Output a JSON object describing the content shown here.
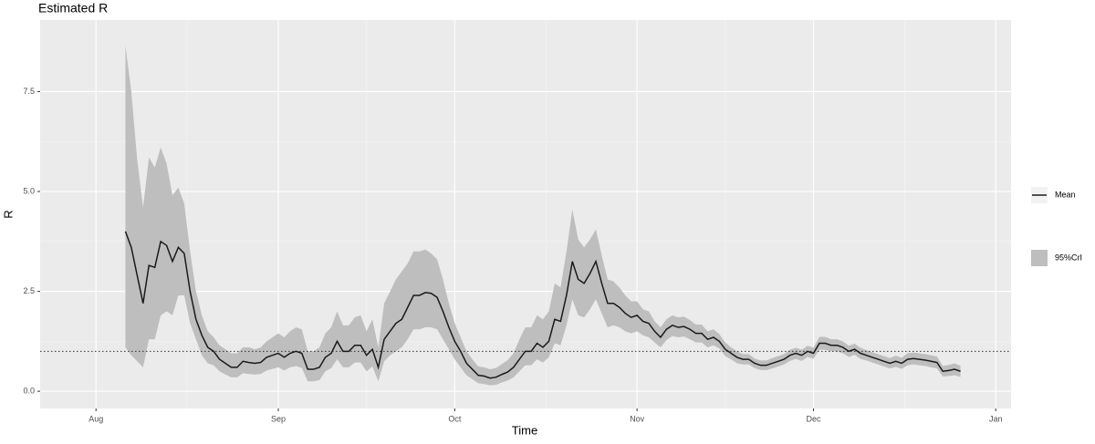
{
  "chart_data": {
    "type": "line",
    "title": "Estimated R",
    "x_label": "Time",
    "y_label": "R",
    "x": [
      5,
      6,
      7,
      8,
      9,
      10,
      11,
      12,
      13,
      14,
      15,
      16,
      17,
      18,
      19,
      20,
      21,
      22,
      23,
      24,
      25,
      26,
      27,
      28,
      29,
      30,
      31,
      32,
      33,
      34,
      35,
      36,
      37,
      38,
      39,
      40,
      41,
      42,
      43,
      44,
      45,
      46,
      47,
      48,
      49,
      50,
      51,
      52,
      53,
      54,
      55,
      56,
      57,
      58,
      59,
      60,
      61,
      62,
      63,
      64,
      65,
      66,
      67,
      68,
      69,
      70,
      71,
      72,
      73,
      74,
      75,
      76,
      77,
      78,
      79,
      80,
      81,
      82,
      83,
      84,
      85,
      86,
      87,
      88,
      89,
      90,
      91,
      92,
      93,
      94,
      95,
      96,
      97,
      98,
      99,
      100,
      101,
      102,
      103,
      104,
      105,
      106,
      107,
      108,
      109,
      110,
      111,
      112,
      113,
      114,
      115,
      116,
      117,
      118,
      119,
      120,
      121,
      122,
      123,
      124,
      125,
      126,
      127,
      128,
      129,
      130,
      131,
      132,
      133,
      134,
      135,
      136,
      137,
      138,
      139,
      140,
      141,
      142,
      143,
      144,
      145,
      146,
      147
    ],
    "series": [
      {
        "name": "Mean",
        "color": "#1a1a1a",
        "values": [
          4.0,
          3.6,
          2.9,
          2.2,
          3.15,
          3.1,
          3.75,
          3.65,
          3.25,
          3.6,
          3.45,
          2.5,
          1.8,
          1.4,
          1.1,
          1.0,
          0.8,
          0.7,
          0.6,
          0.6,
          0.75,
          0.72,
          0.7,
          0.72,
          0.85,
          0.9,
          0.95,
          0.85,
          0.95,
          1.0,
          0.95,
          0.55,
          0.55,
          0.6,
          0.85,
          0.95,
          1.25,
          1.0,
          1.0,
          1.15,
          1.15,
          0.9,
          1.05,
          0.6,
          1.3,
          1.5,
          1.7,
          1.8,
          2.1,
          2.4,
          2.4,
          2.47,
          2.45,
          2.35,
          2.0,
          1.6,
          1.25,
          1.0,
          0.7,
          0.55,
          0.4,
          0.38,
          0.33,
          0.35,
          0.42,
          0.48,
          0.6,
          0.8,
          1.0,
          1.0,
          1.2,
          1.1,
          1.25,
          1.8,
          1.75,
          2.4,
          3.25,
          2.8,
          2.7,
          2.95,
          3.25,
          2.7,
          2.2,
          2.2,
          2.1,
          1.95,
          1.85,
          1.9,
          1.75,
          1.7,
          1.5,
          1.35,
          1.55,
          1.65,
          1.6,
          1.62,
          1.55,
          1.45,
          1.45,
          1.3,
          1.35,
          1.25,
          1.05,
          0.95,
          0.85,
          0.8,
          0.8,
          0.7,
          0.65,
          0.65,
          0.7,
          0.75,
          0.8,
          0.9,
          0.95,
          0.9,
          1.0,
          0.95,
          1.2,
          1.2,
          1.15,
          1.15,
          1.1,
          1.0,
          1.05,
          0.95,
          0.9,
          0.85,
          0.8,
          0.75,
          0.7,
          0.75,
          0.7,
          0.8,
          0.82,
          0.8,
          0.78,
          0.75,
          0.72,
          0.5,
          0.52,
          0.55,
          0.5
        ]
      },
      {
        "name": "95%CrI",
        "color": "#bebebe",
        "upper": [
          8.65,
          7.5,
          5.8,
          4.6,
          5.85,
          5.6,
          6.1,
          5.7,
          4.9,
          5.1,
          4.7,
          3.5,
          2.5,
          1.9,
          1.5,
          1.35,
          1.15,
          1.05,
          0.95,
          0.95,
          1.1,
          1.1,
          1.05,
          1.1,
          1.25,
          1.35,
          1.45,
          1.35,
          1.5,
          1.6,
          1.55,
          1.0,
          1.0,
          1.1,
          1.45,
          1.6,
          2.0,
          1.65,
          1.65,
          1.85,
          1.9,
          1.5,
          1.8,
          1.1,
          2.2,
          2.5,
          2.8,
          3.0,
          3.2,
          3.5,
          3.5,
          3.55,
          3.45,
          3.3,
          2.8,
          2.2,
          1.7,
          1.35,
          1.0,
          0.8,
          0.62,
          0.6,
          0.55,
          0.58,
          0.68,
          0.78,
          0.95,
          1.3,
          1.6,
          1.6,
          1.9,
          1.8,
          2.0,
          2.7,
          2.6,
          3.5,
          4.55,
          3.8,
          3.6,
          3.8,
          4.05,
          3.4,
          2.8,
          2.75,
          2.6,
          2.4,
          2.25,
          2.25,
          2.05,
          2.0,
          1.75,
          1.6,
          1.8,
          1.9,
          1.85,
          1.87,
          1.78,
          1.67,
          1.67,
          1.5,
          1.55,
          1.43,
          1.22,
          1.1,
          1.0,
          0.93,
          0.93,
          0.82,
          0.77,
          0.77,
          0.83,
          0.88,
          0.93,
          1.04,
          1.09,
          1.04,
          1.14,
          1.09,
          1.36,
          1.36,
          1.3,
          1.3,
          1.25,
          1.14,
          1.19,
          1.09,
          1.03,
          0.98,
          0.93,
          0.88,
          0.83,
          0.89,
          0.84,
          0.95,
          0.97,
          0.95,
          0.93,
          0.9,
          0.87,
          0.63,
          0.66,
          0.7,
          0.64
        ],
        "lower": [
          1.1,
          0.9,
          0.75,
          0.6,
          1.3,
          1.3,
          1.9,
          2.0,
          1.9,
          2.4,
          2.4,
          1.7,
          1.3,
          0.9,
          0.7,
          0.65,
          0.5,
          0.42,
          0.35,
          0.35,
          0.45,
          0.43,
          0.42,
          0.43,
          0.52,
          0.56,
          0.6,
          0.52,
          0.6,
          0.63,
          0.58,
          0.25,
          0.25,
          0.28,
          0.5,
          0.58,
          0.8,
          0.6,
          0.6,
          0.72,
          0.72,
          0.5,
          0.62,
          0.25,
          0.75,
          0.9,
          1.0,
          1.1,
          1.3,
          1.55,
          1.55,
          1.6,
          1.6,
          1.55,
          1.3,
          1.05,
          0.8,
          0.6,
          0.4,
          0.3,
          0.2,
          0.18,
          0.15,
          0.16,
          0.22,
          0.27,
          0.35,
          0.5,
          0.65,
          0.65,
          0.8,
          0.72,
          0.85,
          1.2,
          1.15,
          1.65,
          2.3,
          1.9,
          1.85,
          2.05,
          2.3,
          1.95,
          1.6,
          1.65,
          1.6,
          1.5,
          1.45,
          1.5,
          1.4,
          1.35,
          1.22,
          1.1,
          1.28,
          1.38,
          1.35,
          1.37,
          1.3,
          1.22,
          1.22,
          1.1,
          1.15,
          1.07,
          0.88,
          0.8,
          0.7,
          0.67,
          0.67,
          0.58,
          0.53,
          0.53,
          0.57,
          0.62,
          0.67,
          0.76,
          0.81,
          0.76,
          0.86,
          0.81,
          1.04,
          1.04,
          1.0,
          1.0,
          0.95,
          0.86,
          0.91,
          0.81,
          0.77,
          0.72,
          0.67,
          0.62,
          0.57,
          0.61,
          0.56,
          0.65,
          0.67,
          0.65,
          0.63,
          0.6,
          0.57,
          0.37,
          0.38,
          0.4,
          0.36
        ]
      }
    ],
    "reference_line": 1,
    "xlim": [
      -9.5,
      155.6
    ],
    "xticks": [
      {
        "value": 0,
        "label": "Aug"
      },
      {
        "value": 31,
        "label": "Sep"
      },
      {
        "value": 61,
        "label": "Oct"
      },
      {
        "value": 92,
        "label": "Nov"
      },
      {
        "value": 122,
        "label": "Dec"
      },
      {
        "value": 153,
        "label": "Jan"
      }
    ],
    "ylim": [
      -0.43,
      9.29
    ],
    "yticks": [
      {
        "value": 0,
        "label": "0.0"
      },
      2.5,
      {
        "value": 5,
        "label": "5.0"
      },
      7.5
    ],
    "grid": true,
    "legend": "right"
  }
}
